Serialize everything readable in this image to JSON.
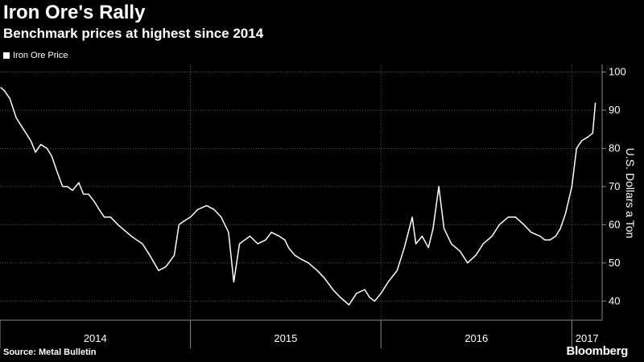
{
  "header": {
    "title": "Iron Ore's Rally",
    "subtitle": "Benchmark prices at highest since 2014"
  },
  "footer": {
    "source": "Source: Metal Bulletin",
    "brand": "Bloomberg"
  },
  "colors": {
    "background": "#000000",
    "line": "#ffffff",
    "grid": "#555555"
  },
  "chart_data": {
    "type": "line",
    "title": "Iron Ore's Rally",
    "subtitle": "Benchmark prices at highest since 2014",
    "ylabel": "U.S. Dollars a Ton",
    "xlabel": "",
    "ylim": [
      35,
      102
    ],
    "xlim": [
      "2014-01-01",
      "2017-02-28"
    ],
    "yticks": [
      40,
      50,
      60,
      70,
      80,
      90,
      100
    ],
    "xtick_labels": [
      "2014",
      "2015",
      "2016",
      "2017"
    ],
    "grid": true,
    "legend_position": "top-left",
    "series": [
      {
        "name": "Iron Ore Price",
        "x": [
          "2014-01-02",
          "2014-01-10",
          "2014-01-20",
          "2014-02-01",
          "2014-02-15",
          "2014-03-01",
          "2014-03-10",
          "2014-03-20",
          "2014-04-01",
          "2014-04-10",
          "2014-04-20",
          "2014-05-01",
          "2014-05-10",
          "2014-05-20",
          "2014-06-01",
          "2014-06-10",
          "2014-06-20",
          "2014-07-01",
          "2014-07-10",
          "2014-07-20",
          "2014-08-01",
          "2014-08-15",
          "2014-09-01",
          "2014-09-10",
          "2014-09-20",
          "2014-10-01",
          "2014-10-15",
          "2014-11-01",
          "2014-11-15",
          "2014-12-01",
          "2014-12-10",
          "2014-12-20",
          "2015-01-01",
          "2015-01-15",
          "2015-02-01",
          "2015-02-15",
          "2015-03-01",
          "2015-03-15",
          "2015-03-25",
          "2015-04-05",
          "2015-04-15",
          "2015-04-25",
          "2015-05-10",
          "2015-05-25",
          "2015-06-05",
          "2015-06-20",
          "2015-07-01",
          "2015-07-08",
          "2015-07-20",
          "2015-08-01",
          "2015-08-15",
          "2015-09-01",
          "2015-09-15",
          "2015-10-01",
          "2015-10-15",
          "2015-11-01",
          "2015-11-15",
          "2015-12-01",
          "2015-12-10",
          "2015-12-20",
          "2016-01-01",
          "2016-01-15",
          "2016-02-01",
          "2016-02-15",
          "2016-03-01",
          "2016-03-08",
          "2016-03-20",
          "2016-04-01",
          "2016-04-10",
          "2016-04-21",
          "2016-05-01",
          "2016-05-15",
          "2016-06-01",
          "2016-06-15",
          "2016-07-01",
          "2016-07-15",
          "2016-08-01",
          "2016-08-15",
          "2016-09-01",
          "2016-09-15",
          "2016-10-01",
          "2016-10-15",
          "2016-11-01",
          "2016-11-10",
          "2016-11-20",
          "2016-12-01",
          "2016-12-10",
          "2016-12-20",
          "2017-01-01",
          "2017-01-10",
          "2017-01-20",
          "2017-02-01",
          "2017-02-10",
          "2017-02-15"
        ],
        "values": [
          96,
          95,
          93,
          88,
          85,
          82,
          79,
          81,
          80,
          78,
          74,
          70,
          70,
          69,
          71,
          68,
          68,
          66,
          64,
          62,
          62,
          60,
          58,
          57,
          56,
          55,
          52,
          48,
          49,
          52,
          60,
          61,
          62,
          64,
          65,
          64,
          62,
          58,
          45,
          55,
          56,
          57,
          55,
          56,
          58,
          57,
          56,
          54,
          52,
          51,
          50,
          48,
          46,
          43,
          41,
          39,
          42,
          43,
          41,
          40,
          42,
          45,
          48,
          54,
          62,
          55,
          57,
          54,
          59,
          70,
          59,
          55,
          53,
          50,
          52,
          55,
          57,
          60,
          62,
          62,
          60,
          58,
          57,
          56,
          56,
          57,
          59,
          63,
          70,
          80,
          82,
          83,
          84,
          92
        ]
      }
    ]
  }
}
